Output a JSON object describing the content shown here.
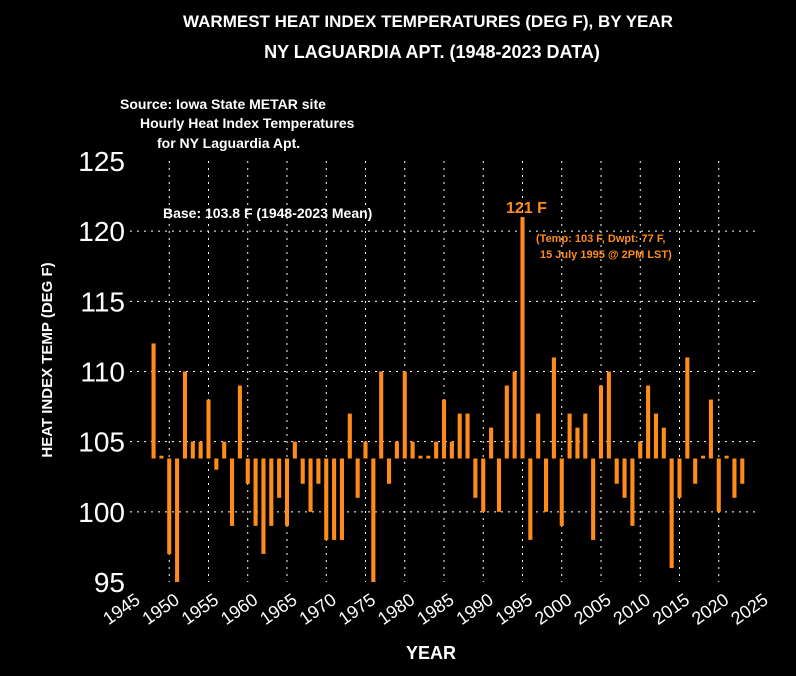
{
  "title_line1": "WARMEST HEAT INDEX TEMPERATURES (DEG F), BY YEAR",
  "title_line2": "NY LAGUARDIA APT. (1948-2023 DATA)",
  "source_lines": [
    "Source: Iowa State METAR site",
    "Hourly Heat Index Temperatures",
    "for NY Laguardia Apt."
  ],
  "base_label": "Base: 103.8 F (1948-2023 Mean)",
  "peak_label": "121 F",
  "peak_note_line1": "(Temp: 103 F, Dwpt: 77 F,",
  "peak_note_line2": "15 July 1995 @ 2PM LST)",
  "colors": {
    "bar": "#ff8c1a",
    "annotation": "#ff8c1a",
    "background": "#000000",
    "text": "#ffffff"
  },
  "chart_data": {
    "type": "bar",
    "xlabel": "YEAR",
    "ylabel": "HEAT INDEX TEMP (DEG F)",
    "xlim": [
      1945,
      2025
    ],
    "ylim": [
      95,
      125
    ],
    "base": 103.8,
    "grid": true,
    "xticks": [
      1945,
      1950,
      1955,
      1960,
      1965,
      1970,
      1975,
      1980,
      1985,
      1990,
      1995,
      2000,
      2005,
      2010,
      2015,
      2020,
      2025
    ],
    "yticks": [
      95,
      100,
      105,
      110,
      115,
      120,
      125
    ],
    "x": [
      1948,
      1949,
      1950,
      1951,
      1952,
      1953,
      1954,
      1955,
      1956,
      1957,
      1958,
      1959,
      1960,
      1961,
      1962,
      1963,
      1964,
      1965,
      1966,
      1967,
      1968,
      1969,
      1970,
      1971,
      1972,
      1973,
      1974,
      1975,
      1976,
      1977,
      1978,
      1979,
      1980,
      1981,
      1982,
      1983,
      1984,
      1985,
      1986,
      1987,
      1988,
      1989,
      1990,
      1991,
      1992,
      1993,
      1994,
      1995,
      1996,
      1997,
      1998,
      1999,
      2000,
      2001,
      2002,
      2003,
      2004,
      2005,
      2006,
      2007,
      2008,
      2009,
      2010,
      2011,
      2012,
      2013,
      2014,
      2015,
      2016,
      2017,
      2018,
      2019,
      2020,
      2021,
      2022,
      2023
    ],
    "values": [
      112,
      104,
      97,
      95,
      110,
      105,
      105,
      108,
      103,
      105,
      99,
      109,
      102,
      99,
      97,
      99,
      101,
      99,
      105,
      102,
      100,
      102,
      98,
      98,
      98,
      107,
      101,
      105,
      95,
      110,
      102,
      105,
      110,
      105,
      104,
      104,
      105,
      108,
      105,
      107,
      107,
      101,
      100,
      106,
      100,
      109,
      110,
      121,
      98,
      107,
      100,
      111,
      99,
      107,
      106,
      107,
      98,
      109,
      110,
      102,
      101,
      99,
      105,
      109,
      107,
      106,
      96,
      101,
      111,
      102,
      104,
      108,
      100,
      104,
      101,
      102
    ]
  }
}
